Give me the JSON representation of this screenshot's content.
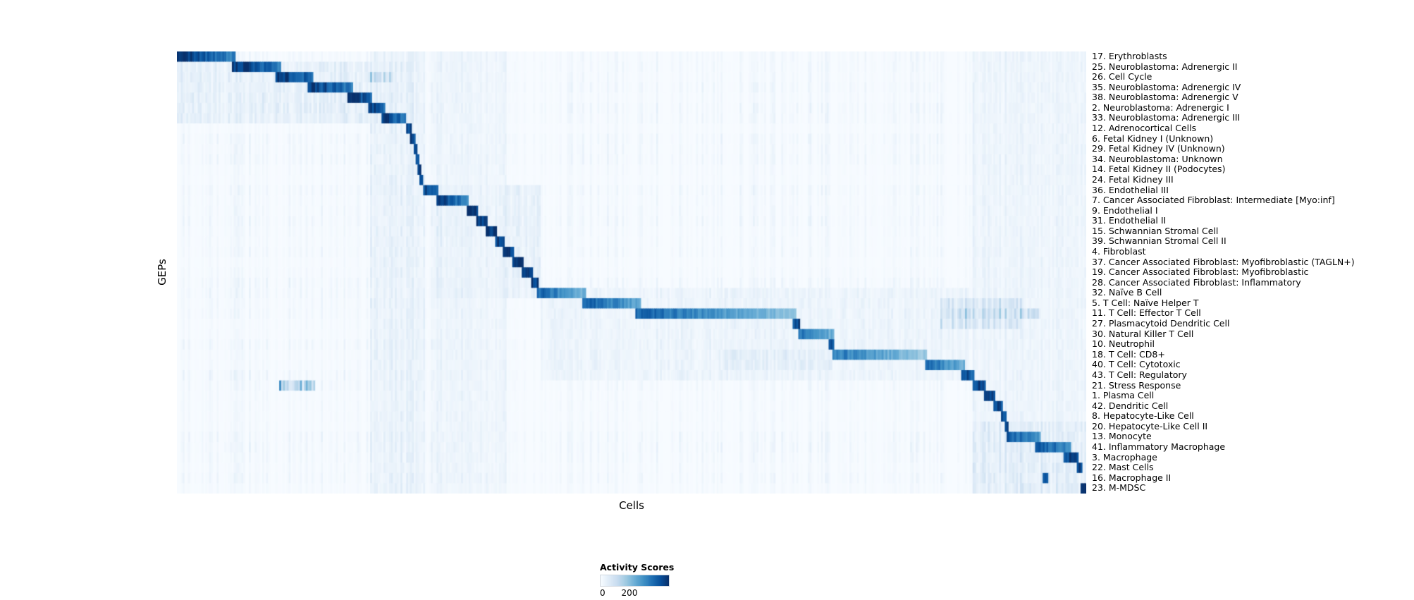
{
  "chart_data": {
    "type": "heatmap",
    "title": "",
    "xlabel": "Cells",
    "ylabel": "GEPs",
    "legend_title": "Activity Scores",
    "legend_ticks": [
      "0",
      "200"
    ],
    "value_range": [
      0,
      200
    ],
    "colormap": [
      "#f7fbff",
      "#deebf7",
      "#c6dbef",
      "#9ecae1",
      "#6baed6",
      "#4292c6",
      "#2171b5",
      "#08519c",
      "#08306b"
    ],
    "layout_hints": {
      "grid": false,
      "legend_position": "bottom-center",
      "row_labels_position": "right",
      "pattern": "block-diagonal"
    },
    "rows": [
      {
        "label": "17. Erythroblasts",
        "band": {
          "start": 0.0,
          "end": 0.065,
          "intensity": 1.0,
          "fade": 0.35
        }
      },
      {
        "label": "25. Neuroblastoma: Adrenergic II",
        "band": {
          "start": 0.06,
          "end": 0.114,
          "intensity": 1.0,
          "fade": 0.3
        }
      },
      {
        "label": "26. Cell Cycle",
        "band": {
          "start": 0.108,
          "end": 0.15,
          "intensity": 1.0,
          "fade": 0.25
        }
      },
      {
        "label": "35. Neuroblastoma: Adrenergic IV",
        "band": {
          "start": 0.144,
          "end": 0.193,
          "intensity": 1.0,
          "fade": 0.3
        }
      },
      {
        "label": "38. Neuroblastoma: Adrenergic V",
        "band": {
          "start": 0.187,
          "end": 0.215,
          "intensity": 1.0,
          "fade": 0.2
        }
      },
      {
        "label": "2. Neuroblastoma: Adrenergic I",
        "band": {
          "start": 0.21,
          "end": 0.229,
          "intensity": 1.0,
          "fade": 0.2
        }
      },
      {
        "label": "33. Neuroblastoma: Adrenergic III",
        "band": {
          "start": 0.225,
          "end": 0.253,
          "intensity": 1.0,
          "fade": 0.3
        }
      },
      {
        "label": "12. Adrenocortical Cells",
        "band": {
          "start": 0.253,
          "end": 0.259,
          "intensity": 0.95,
          "fade": 0
        }
      },
      {
        "label": "6. Fetal Kidney I (Unknown)",
        "band": {
          "start": 0.257,
          "end": 0.262,
          "intensity": 0.9,
          "fade": 0
        }
      },
      {
        "label": "29. Fetal Kidney IV (Unknown)",
        "band": {
          "start": 0.26,
          "end": 0.264,
          "intensity": 0.9,
          "fade": 0
        }
      },
      {
        "label": "34. Neuroblastoma: Unknown",
        "band": {
          "start": 0.262,
          "end": 0.266,
          "intensity": 0.9,
          "fade": 0
        }
      },
      {
        "label": "14. Fetal Kidney II (Podocytes)",
        "band": {
          "start": 0.264,
          "end": 0.268,
          "intensity": 0.9,
          "fade": 0
        }
      },
      {
        "label": "24. Fetal Kidney III",
        "band": {
          "start": 0.266,
          "end": 0.271,
          "intensity": 0.9,
          "fade": 0
        }
      },
      {
        "label": "36. Endothelial III",
        "band": {
          "start": 0.27,
          "end": 0.287,
          "intensity": 0.95,
          "fade": 0.2
        }
      },
      {
        "label": "7. Cancer Associated Fibroblast: Intermediate [Myo:inf]",
        "band": {
          "start": 0.285,
          "end": 0.32,
          "intensity": 0.95,
          "fade": 0.3
        }
      },
      {
        "label": "9. Endothelial I",
        "band": {
          "start": 0.318,
          "end": 0.331,
          "intensity": 0.95,
          "fade": 0
        }
      },
      {
        "label": "31. Endothelial II",
        "band": {
          "start": 0.329,
          "end": 0.341,
          "intensity": 0.95,
          "fade": 0
        }
      },
      {
        "label": "15. Schwannian Stromal Cell",
        "band": {
          "start": 0.339,
          "end": 0.352,
          "intensity": 0.95,
          "fade": 0
        }
      },
      {
        "label": "39. Schwannian Stromal Cell II",
        "band": {
          "start": 0.35,
          "end": 0.361,
          "intensity": 0.95,
          "fade": 0
        }
      },
      {
        "label": "4. Fibroblast",
        "band": {
          "start": 0.359,
          "end": 0.371,
          "intensity": 0.95,
          "fade": 0
        }
      },
      {
        "label": "37. Cancer Associated Fibroblast: Myofibroblastic (TAGLN+)",
        "band": {
          "start": 0.369,
          "end": 0.381,
          "intensity": 0.95,
          "fade": 0
        }
      },
      {
        "label": "19. Cancer Associated Fibroblast: Myofibroblastic",
        "band": {
          "start": 0.379,
          "end": 0.391,
          "intensity": 0.95,
          "fade": 0
        }
      },
      {
        "label": "28. Cancer Associated Fibroblast: Inflammatory",
        "band": {
          "start": 0.389,
          "end": 0.397,
          "intensity": 0.95,
          "fade": 0
        }
      },
      {
        "label": "32. Naïve B Cell",
        "band": {
          "start": 0.395,
          "end": 0.451,
          "intensity": 0.82,
          "fade": 0.45
        }
      },
      {
        "label": "5. T Cell: Naïve Helper T",
        "band": {
          "start": 0.446,
          "end": 0.511,
          "intensity": 0.85,
          "fade": 0.4
        }
      },
      {
        "label": "11. T Cell: Effector T Cell",
        "band": {
          "start": 0.505,
          "end": 0.682,
          "intensity": 0.8,
          "fade": 0.5
        }
      },
      {
        "label": "27. Plasmacytoid Dendritic Cell",
        "band": {
          "start": 0.678,
          "end": 0.686,
          "intensity": 0.9,
          "fade": 0
        }
      },
      {
        "label": "30. Natural Killer T Cell",
        "band": {
          "start": 0.684,
          "end": 0.723,
          "intensity": 0.78,
          "fade": 0.4
        }
      },
      {
        "label": "10. Neutrophil",
        "band": {
          "start": 0.717,
          "end": 0.723,
          "intensity": 0.9,
          "fade": 0
        }
      },
      {
        "label": "18. T Cell: CD8+",
        "band": {
          "start": 0.721,
          "end": 0.826,
          "intensity": 0.72,
          "fade": 0.5
        }
      },
      {
        "label": "40. T Cell: Cytotoxic",
        "band": {
          "start": 0.822,
          "end": 0.866,
          "intensity": 0.8,
          "fade": 0.4
        }
      },
      {
        "label": "43. T Cell: Regulatory",
        "band": {
          "start": 0.862,
          "end": 0.877,
          "intensity": 0.85,
          "fade": 0
        }
      },
      {
        "label": "21. Stress Response",
        "band": {
          "start": 0.875,
          "end": 0.89,
          "intensity": 0.9,
          "fade": 0
        }
      },
      {
        "label": "1. Plasma Cell",
        "band": {
          "start": 0.888,
          "end": 0.9,
          "intensity": 0.9,
          "fade": 0
        }
      },
      {
        "label": "42. Dendritic Cell",
        "band": {
          "start": 0.898,
          "end": 0.908,
          "intensity": 0.9,
          "fade": 0
        }
      },
      {
        "label": "8. Hepatocyte-Like Cell",
        "band": {
          "start": 0.906,
          "end": 0.912,
          "intensity": 0.9,
          "fade": 0
        }
      },
      {
        "label": "20. Hepatocyte-Like Cell II",
        "band": {
          "start": 0.91,
          "end": 0.915,
          "intensity": 0.9,
          "fade": 0
        }
      },
      {
        "label": "13. Monocyte",
        "band": {
          "start": 0.913,
          "end": 0.951,
          "intensity": 0.85,
          "fade": 0.3
        }
      },
      {
        "label": "41. Inflammatory Macrophage",
        "band": {
          "start": 0.943,
          "end": 0.983,
          "intensity": 0.85,
          "fade": 0.2
        }
      },
      {
        "label": "3. Macrophage",
        "band": {
          "start": 0.975,
          "end": 0.992,
          "intensity": 0.9,
          "fade": 0
        }
      },
      {
        "label": "22. Mast Cells",
        "band": {
          "start": 0.99,
          "end": 0.995,
          "intensity": 0.9,
          "fade": 0
        }
      },
      {
        "label": "16. Macrophage II",
        "band": {
          "start": 0.952,
          "end": 0.959,
          "intensity": 0.9,
          "fade": 0
        }
      },
      {
        "label": "23. M-MDSC",
        "band": {
          "start": 0.994,
          "end": 1.0,
          "intensity": 0.95,
          "fade": 0
        }
      }
    ],
    "light_regions": [
      {
        "rows": [
          1,
          6
        ],
        "start": 0.0,
        "end": 0.26,
        "intensity": 0.1
      },
      {
        "rows": [
          0,
          42
        ],
        "start": 0.212,
        "end": 0.272,
        "intensity": 0.08
      },
      {
        "rows": [
          0,
          42
        ],
        "start": 0.282,
        "end": 0.362,
        "intensity": 0.06
      },
      {
        "rows": [
          13,
          23
        ],
        "start": 0.282,
        "end": 0.4,
        "intensity": 0.08
      },
      {
        "rows": [
          23,
          31
        ],
        "start": 0.4,
        "end": 0.87,
        "intensity": 0.06
      },
      {
        "rows": [
          24,
          26
        ],
        "start": 0.84,
        "end": 0.93,
        "intensity": 0.18
      },
      {
        "rows": [
          25,
          25
        ],
        "start": 0.86,
        "end": 0.95,
        "intensity": 0.25
      },
      {
        "rows": [
          29,
          30
        ],
        "start": 0.6,
        "end": 0.72,
        "intensity": 0.1
      },
      {
        "rows": [
          0,
          42
        ],
        "start": 0.875,
        "end": 1.0,
        "intensity": 0.06
      },
      {
        "rows": [
          36,
          42
        ],
        "start": 0.875,
        "end": 1.0,
        "intensity": 0.12
      },
      {
        "rows": [
          32,
          32
        ],
        "start": 0.112,
        "end": 0.152,
        "intensity": 0.4
      },
      {
        "rows": [
          2,
          2
        ],
        "start": 0.21,
        "end": 0.235,
        "intensity": 0.3
      }
    ]
  }
}
